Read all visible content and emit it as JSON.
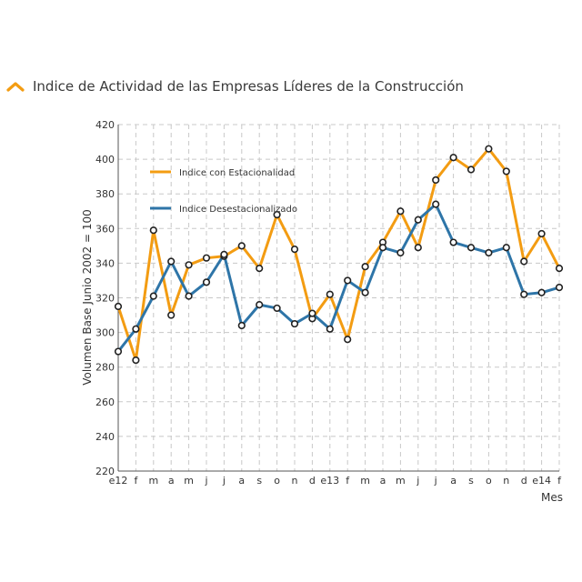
{
  "header": {
    "title": "Indice de Actividad de las Empresas Líderes de la Construcción",
    "icon": "chevron-up-icon"
  },
  "colors": {
    "accent": "#f39c12",
    "series_1": "#f39c12",
    "series_2": "#2e75a8",
    "grid": "#c8c8c8",
    "marker": "#222222"
  },
  "chart_data": {
    "type": "line",
    "title": "",
    "xlabel": "Mes",
    "ylabel": "Volumen Base Junio 2002 = 100",
    "ylim": [
      220,
      420
    ],
    "yticks": [
      220,
      240,
      260,
      280,
      300,
      320,
      340,
      360,
      380,
      400,
      420
    ],
    "grid": true,
    "legend_position": "top-left",
    "categories": [
      "e12",
      "f",
      "m",
      "a",
      "m",
      "j",
      "j",
      "a",
      "s",
      "o",
      "n",
      "d",
      "e13",
      "f",
      "m",
      "a",
      "m",
      "j",
      "j",
      "a",
      "s",
      "o",
      "n",
      "d",
      "e14",
      "f"
    ],
    "series": [
      {
        "name": "Indice con Estacionalidad",
        "color": "#f39c12",
        "values": [
          315,
          284,
          359,
          310,
          339,
          343,
          344,
          350,
          337,
          368,
          348,
          308,
          322,
          296,
          338,
          352,
          370,
          349,
          388,
          401,
          394,
          406,
          393,
          341,
          357,
          337
        ]
      },
      {
        "name": "Indice Desestacionalizado",
        "color": "#2e75a8",
        "values": [
          289,
          302,
          321,
          341,
          321,
          329,
          345,
          304,
          316,
          314,
          305,
          311,
          302,
          330,
          323,
          349,
          346,
          365,
          374,
          352,
          349,
          346,
          349,
          322,
          323,
          326
        ]
      }
    ]
  }
}
